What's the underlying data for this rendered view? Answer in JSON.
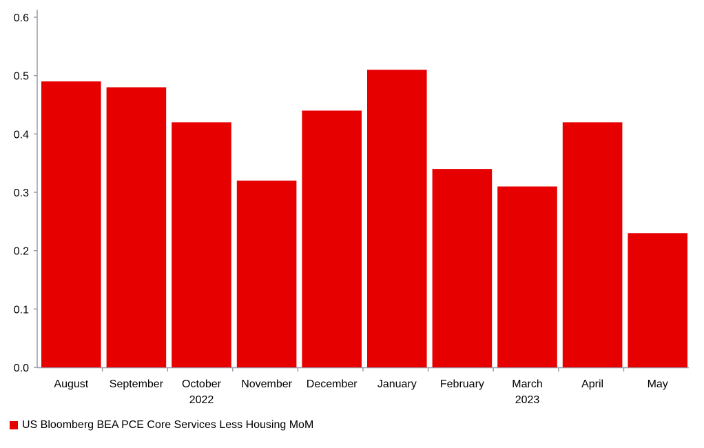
{
  "chart_data": {
    "type": "bar",
    "categories": [
      "August",
      "September",
      "October",
      "November",
      "December",
      "January",
      "February",
      "March",
      "April",
      "May"
    ],
    "year_labels": [
      "",
      "",
      "2022",
      "",
      "",
      "",
      "",
      "2023",
      "",
      ""
    ],
    "series": [
      {
        "name": "US Bloomberg BEA PCE Core Services Less Housing MoM",
        "color": "#e60000",
        "values": [
          0.49,
          0.48,
          0.42,
          0.32,
          0.44,
          0.51,
          0.34,
          0.31,
          0.42,
          0.23
        ]
      }
    ],
    "yticks": [
      "0.0",
      "0.1",
      "0.2",
      "0.3",
      "0.4",
      "0.5",
      "0.6"
    ],
    "ylim": [
      0,
      0.6
    ],
    "grid": false,
    "legend_position": "bottom-left"
  }
}
